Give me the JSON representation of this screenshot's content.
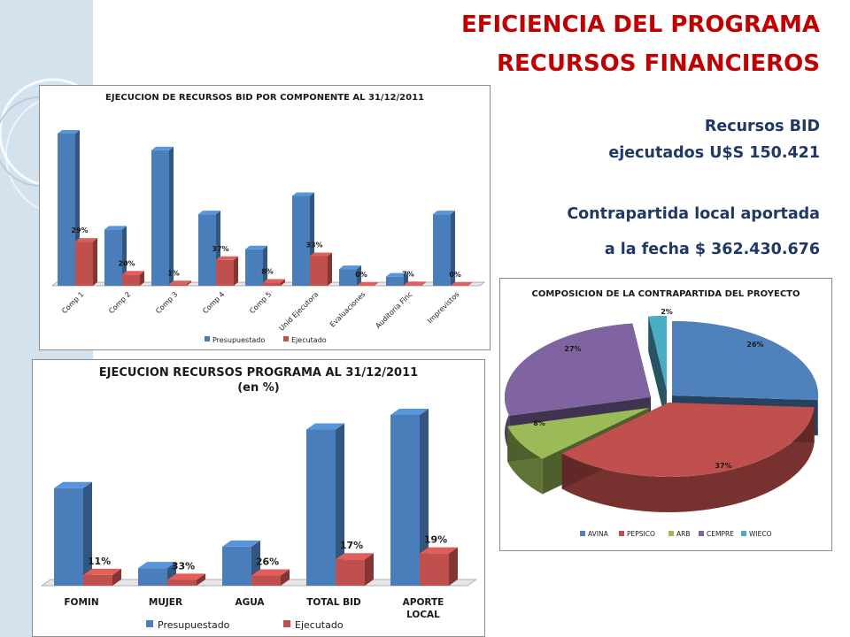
{
  "colors": {
    "title": "#c00000",
    "info": "#1f3864",
    "presupuestado": "#4a7ebb",
    "ejecutado": "#c0504d",
    "avina": "#4f81bd",
    "pepsico": "#c0504d",
    "arb": "#9bbb59",
    "cempre": "#8064a2",
    "wieco": "#4bacc6"
  },
  "header": {
    "title_line1": "EFICIENCIA DEL PROGRAMA",
    "title_line2": "RECURSOS FINANCIEROS"
  },
  "info": {
    "bid_line1": "Recursos BID",
    "bid_line2": "ejecutados U$S 150.421",
    "local_line1": "Contrapartida local aportada",
    "local_line2": "a la fecha $ 362.430.676"
  },
  "chart_data": [
    {
      "type": "bar",
      "title": "EJECUCION DE RECURSOS BID POR COMPONENTE AL 31/12/2011",
      "categories": [
        "Comp 1",
        "Comp 2",
        "Comp 3",
        "Comp 4",
        "Comp 5",
        "Unid Ejecutora",
        "Evaluaciones",
        "Auditoría Finc",
        "Imprevistos"
      ],
      "series": [
        {
          "name": "Presupuestado",
          "values": [
            100,
            37,
            89,
            47,
            24,
            59,
            11,
            6,
            47
          ]
        },
        {
          "name": "Ejecutado",
          "values": [
            29,
            7.4,
            1,
            17,
            2,
            19.5,
            0,
            0.4,
            0
          ]
        }
      ],
      "data_labels": [
        "29%",
        "20%",
        "1%",
        "37%",
        "8%",
        "33%",
        "0%",
        "7%",
        "0%"
      ],
      "legend": "bottom",
      "grid": false
    },
    {
      "type": "bar",
      "title": "EJECUCION RECURSOS PROGRAMA AL 31/12/2011",
      "subtitle": "(en %)",
      "categories": [
        "FOMIN",
        "MUJER",
        "AGUA",
        "TOTAL BID",
        "APORTE LOCAL"
      ],
      "series": [
        {
          "name": "Presupuestado",
          "values": [
            100,
            18,
            40,
            160,
            175
          ]
        },
        {
          "name": "Ejecutado",
          "values": [
            11,
            6,
            10.4,
            27,
            33
          ]
        }
      ],
      "data_labels": [
        "11%",
        "33%",
        "26%",
        "17%",
        "19%"
      ],
      "legend": "bottom",
      "grid": false
    },
    {
      "type": "pie",
      "title": "COMPOSICION DE LA CONTRAPARTIDA DEL PROYECTO",
      "categories": [
        "AVINA",
        "PEPSICO",
        "ARB",
        "CEMPRE",
        "WIECO"
      ],
      "values": [
        26,
        37,
        8,
        27,
        2
      ],
      "data_labels": [
        "26%",
        "37%",
        "8%",
        "27%",
        "2%"
      ],
      "legend": "bottom"
    }
  ]
}
